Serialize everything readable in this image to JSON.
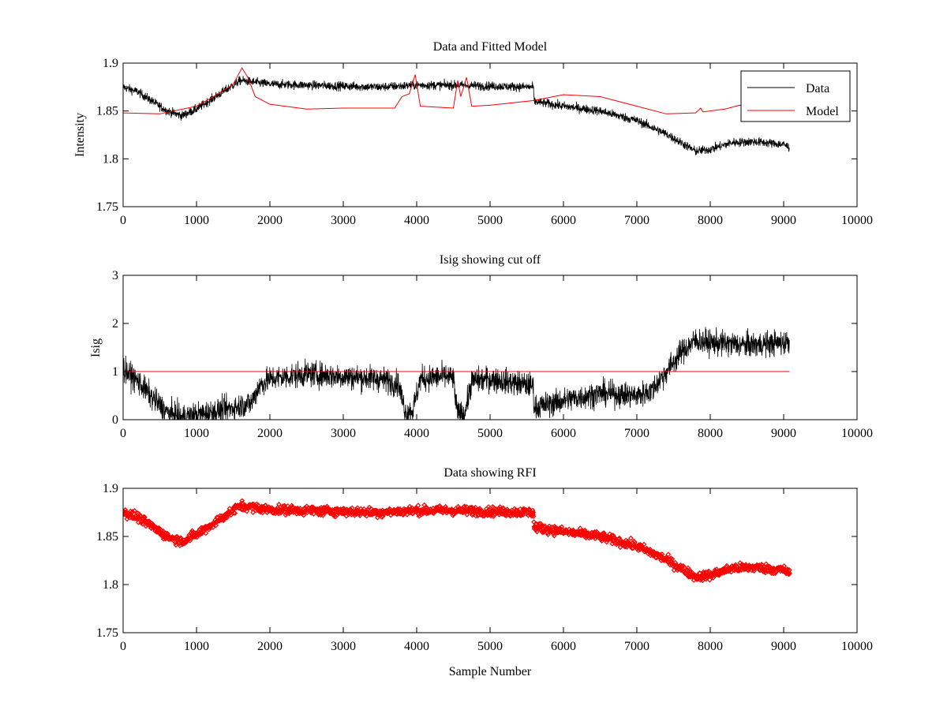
{
  "figure": {
    "background": "#ffffff"
  },
  "chart_data": [
    {
      "id": "panel-1",
      "type": "line",
      "title": "Data and Fitted Model",
      "xlabel": "",
      "ylabel": "Intensity",
      "xlim": [
        0,
        10000
      ],
      "ylim": [
        1.75,
        1.9
      ],
      "xticks": [
        0,
        1000,
        2000,
        3000,
        4000,
        5000,
        6000,
        7000,
        8000,
        9000,
        10000
      ],
      "xtick_labels": [
        "0",
        "1000",
        "2000",
        "3000",
        "4000",
        "5000",
        "6000",
        "7000",
        "8000",
        "9000",
        "10000"
      ],
      "yticks": [
        1.75,
        1.8,
        1.85,
        1.9
      ],
      "ytick_labels": [
        "1.75",
        "1.8",
        "1.85",
        "1.9"
      ],
      "grid": false,
      "legend": {
        "position": "top-right",
        "entries": [
          "Data",
          "Model"
        ]
      },
      "series": [
        {
          "name": "Data",
          "color": "#000000",
          "style": "line",
          "noise": 0.008,
          "x": [
            0,
            200,
            400,
            600,
            800,
            1000,
            1200,
            1400,
            1600,
            1800,
            2000,
            2500,
            3000,
            3500,
            4000,
            4500,
            5000,
            5590,
            5600,
            6000,
            6500,
            7000,
            7400,
            7800,
            8000,
            8300,
            8600,
            9000,
            9080
          ],
          "y": [
            1.875,
            1.87,
            1.86,
            1.85,
            1.845,
            1.852,
            1.862,
            1.872,
            1.882,
            1.88,
            1.878,
            1.877,
            1.876,
            1.875,
            1.877,
            1.877,
            1.876,
            1.875,
            1.86,
            1.855,
            1.85,
            1.84,
            1.826,
            1.808,
            1.81,
            1.817,
            1.818,
            1.815,
            1.812
          ]
        },
        {
          "name": "Model",
          "color": "#ff0000",
          "style": "line",
          "x": [
            0,
            500,
            1000,
            1300,
            1500,
            1620,
            1700,
            1800,
            2000,
            2500,
            3000,
            3700,
            3800,
            3900,
            3980,
            4050,
            4500,
            4560,
            4600,
            4680,
            4750,
            5000,
            5600,
            6000,
            6500,
            7000,
            7400,
            7800,
            7870,
            7900,
            8200,
            8400,
            8600
          ],
          "y": [
            1.848,
            1.847,
            1.855,
            1.868,
            1.878,
            1.895,
            1.885,
            1.865,
            1.857,
            1.852,
            1.853,
            1.853,
            1.865,
            1.868,
            1.888,
            1.855,
            1.853,
            1.882,
            1.865,
            1.885,
            1.855,
            1.856,
            1.861,
            1.867,
            1.865,
            1.855,
            1.847,
            1.848,
            1.853,
            1.849,
            1.852,
            1.856,
            1.853
          ]
        }
      ]
    },
    {
      "id": "panel-2",
      "type": "line",
      "title": "Isig showing cut off",
      "xlabel": "",
      "ylabel": "Isig",
      "xlim": [
        0,
        10000
      ],
      "ylim": [
        0,
        3
      ],
      "xticks": [
        0,
        1000,
        2000,
        3000,
        4000,
        5000,
        6000,
        7000,
        8000,
        9000,
        10000
      ],
      "xtick_labels": [
        "0",
        "1000",
        "2000",
        "3000",
        "4000",
        "5000",
        "6000",
        "7000",
        "8000",
        "9000",
        "10000"
      ],
      "yticks": [
        0,
        1,
        2,
        3
      ],
      "ytick_labels": [
        "0",
        "1",
        "2",
        "3"
      ],
      "grid": false,
      "series": [
        {
          "name": "",
          "color": "#000000",
          "style": "line",
          "noise": 0.45,
          "clip_min": 0,
          "x": [
            0,
            200,
            400,
            600,
            800,
            1000,
            1200,
            1500,
            1750,
            1850,
            2000,
            2500,
            3000,
            3500,
            3750,
            3850,
            3950,
            4050,
            4400,
            4500,
            4550,
            4650,
            4750,
            5000,
            5590,
            5600,
            6000,
            6500,
            7000,
            7200,
            7400,
            7600,
            7800,
            8000,
            8500,
            9000,
            9080
          ],
          "y": [
            1.05,
            0.8,
            0.45,
            0.15,
            0.05,
            0.1,
            0.15,
            0.25,
            0.35,
            0.7,
            0.85,
            0.95,
            0.9,
            0.85,
            0.75,
            0.15,
            0.2,
            0.85,
            0.9,
            0.85,
            0.15,
            0.1,
            0.8,
            0.85,
            0.7,
            0.25,
            0.4,
            0.55,
            0.5,
            0.6,
            1.0,
            1.4,
            1.65,
            1.6,
            1.55,
            1.6,
            1.65
          ]
        },
        {
          "name": "",
          "color": "#ff0000",
          "style": "line",
          "x": [
            0,
            9080
          ],
          "y": [
            1,
            1
          ]
        }
      ]
    },
    {
      "id": "panel-3",
      "type": "scatter",
      "title": "Data showing RFI",
      "xlabel": "Sample Number",
      "ylabel": "",
      "xlim": [
        0,
        10000
      ],
      "ylim": [
        1.75,
        1.9
      ],
      "xticks": [
        0,
        1000,
        2000,
        3000,
        4000,
        5000,
        6000,
        7000,
        8000,
        9000,
        10000
      ],
      "xtick_labels": [
        "0",
        "1000",
        "2000",
        "3000",
        "4000",
        "5000",
        "6000",
        "7000",
        "8000",
        "9000",
        "10000"
      ],
      "yticks": [
        1.75,
        1.8,
        1.85,
        1.9
      ],
      "ytick_labels": [
        "1.75",
        "1.8",
        "1.85",
        "1.9"
      ],
      "grid": false,
      "series": [
        {
          "name": "",
          "color": "#ff0000",
          "style": "markers",
          "marker": "diamond",
          "noise": 0.008,
          "x": [
            0,
            200,
            400,
            600,
            800,
            1000,
            1200,
            1400,
            1600,
            1800,
            2000,
            2500,
            3000,
            3500,
            4000,
            4500,
            5000,
            5590,
            5600,
            6000,
            6500,
            7000,
            7400,
            7800,
            8000,
            8300,
            8600,
            9000,
            9080
          ],
          "y": [
            1.875,
            1.87,
            1.86,
            1.85,
            1.845,
            1.852,
            1.862,
            1.872,
            1.882,
            1.88,
            1.878,
            1.877,
            1.876,
            1.875,
            1.877,
            1.877,
            1.876,
            1.875,
            1.86,
            1.855,
            1.85,
            1.84,
            1.826,
            1.808,
            1.81,
            1.817,
            1.818,
            1.815,
            1.812
          ]
        }
      ]
    }
  ]
}
